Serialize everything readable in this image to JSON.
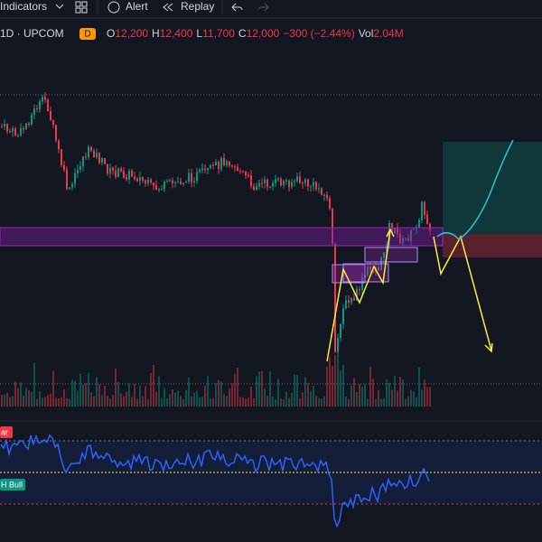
{
  "toolbar": {
    "indicators": "Indicators",
    "alert": "Alert",
    "replay": "Replay"
  },
  "legend": {
    "symbol": "1D · UPCOM",
    "badge": "D",
    "open_label": "O",
    "open": "12,200",
    "high_label": "H",
    "high": "12,400",
    "low_label": "L",
    "low": "11,700",
    "close_label": "C",
    "close": "12,000",
    "change": "−300 (−2.44%)",
    "volume_label": "Vol",
    "volume": "2.04M"
  },
  "rsi": {
    "bear_tag": "ar",
    "bull_tag": "H Bull"
  }
}
